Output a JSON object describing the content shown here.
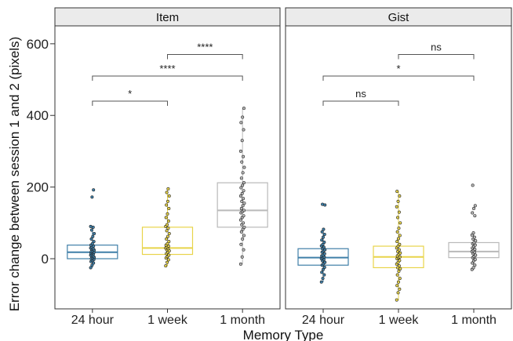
{
  "chart_data": {
    "type": "boxplot",
    "xlabel": "Memory Type",
    "ylabel": "Error change between session 1 and 2 (pixels)",
    "ylim": [
      -140,
      650
    ],
    "yticks": [
      0,
      200,
      400,
      600
    ],
    "categories": [
      "24 hour",
      "1 week",
      "1 month"
    ],
    "category_colors": [
      "#3f7fa8",
      "#e8d44a",
      "#b9b9b9"
    ],
    "panels": [
      {
        "title": "Item",
        "boxes": [
          {
            "category": "24 hour",
            "min": -25,
            "q1": 0,
            "median": 18,
            "q3": 38,
            "max": 88,
            "outliers": [],
            "points": [
              -25,
              -18,
              -12,
              -8,
              -5,
              -2,
              0,
              2,
              4,
              6,
              8,
              10,
              12,
              14,
              15,
              17,
              18,
              20,
              22,
              24,
              26,
              28,
              30,
              32,
              35,
              38,
              42,
              48,
              55,
              62,
              70,
              80,
              88,
              90,
              172,
              192
            ]
          },
          {
            "category": "1 week",
            "min": -20,
            "q1": 12,
            "median": 30,
            "q3": 88,
            "max": 195,
            "outliers": [],
            "points": [
              -20,
              -10,
              -3,
              2,
              6,
              10,
              14,
              18,
              22,
              25,
              28,
              30,
              32,
              35,
              38,
              42,
              48,
              55,
              62,
              70,
              78,
              85,
              90,
              95,
              105,
              115,
              125,
              140,
              150,
              160,
              175,
              185,
              195
            ]
          },
          {
            "category": "1 month",
            "min": -15,
            "q1": 88,
            "median": 135,
            "q3": 212,
            "max": 420,
            "outliers": [],
            "points": [
              -15,
              5,
              25,
              40,
              55,
              65,
              75,
              82,
              88,
              95,
              100,
              108,
              115,
              120,
              128,
              132,
              135,
              140,
              148,
              155,
              160,
              168,
              175,
              182,
              190,
              198,
              205,
              212,
              225,
              240,
              255,
              270,
              285,
              300,
              330,
              360,
              380,
              395,
              420
            ]
          }
        ],
        "comparisons": [
          {
            "from": "24 hour",
            "to": "1 week",
            "label": "*",
            "y": 440
          },
          {
            "from": "24 hour",
            "to": "1 month",
            "label": "****",
            "y": 510
          },
          {
            "from": "1 week",
            "to": "1 month",
            "label": "****",
            "y": 570
          }
        ]
      },
      {
        "title": "Gist",
        "boxes": [
          {
            "category": "24 hour",
            "min": -65,
            "q1": -18,
            "median": 3,
            "q3": 28,
            "max": 82,
            "outliers": [],
            "points": [
              -65,
              -55,
              -45,
              -38,
              -30,
              -24,
              -18,
              -14,
              -10,
              -6,
              -2,
              0,
              3,
              5,
              8,
              10,
              14,
              18,
              22,
              25,
              28,
              32,
              36,
              40,
              46,
              52,
              60,
              68,
              75,
              82,
              150,
              152
            ]
          },
          {
            "category": "1 week",
            "min": -115,
            "q1": -25,
            "median": 5,
            "q3": 35,
            "max": 188,
            "outliers": [],
            "points": [
              -115,
              -95,
              -85,
              -75,
              -65,
              -55,
              -45,
              -35,
              -28,
              -25,
              -20,
              -15,
              -10,
              -5,
              0,
              3,
              5,
              8,
              12,
              16,
              20,
              25,
              30,
              35,
              40,
              48,
              56,
              65,
              75,
              85,
              100,
              115,
              130,
              145,
              160,
              175,
              188
            ]
          },
          {
            "category": "1 month",
            "min": -30,
            "q1": 3,
            "median": 20,
            "q3": 45,
            "max": 72,
            "outliers": [],
            "points": [
              -30,
              -25,
              -18,
              -12,
              -6,
              -2,
              3,
              6,
              10,
              14,
              18,
              20,
              23,
              26,
              30,
              34,
              38,
              42,
              45,
              50,
              55,
              60,
              66,
              72,
              120,
              128,
              140,
              148,
              205
            ]
          }
        ],
        "comparisons": [
          {
            "from": "24 hour",
            "to": "1 week",
            "label": "ns",
            "y": 440
          },
          {
            "from": "24 hour",
            "to": "1 month",
            "label": "*",
            "y": 510
          },
          {
            "from": "1 week",
            "to": "1 month",
            "label": "ns",
            "y": 570
          }
        ]
      }
    ]
  }
}
